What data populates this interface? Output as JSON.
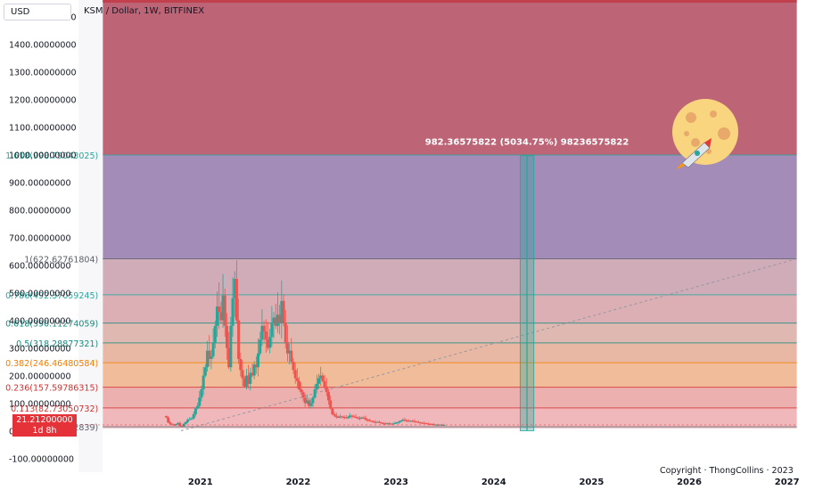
{
  "toolbar": {
    "currency_label": "USD"
  },
  "header": {
    "symbol_title": "KSM / Dollar, 1W, BITFINEX"
  },
  "price_tag": {
    "price": "21.21200000",
    "countdown": "1d 8h"
  },
  "copyright": "Copyright · ThongCollins · 2023",
  "colors": {
    "up": "#26a69a",
    "down": "#ef5350",
    "price_tag": "#e53238",
    "band_top": "#b24a5e",
    "band_1618": "#9a80b0",
    "band_1": "#cba2b0",
    "band_786": "#d7a6ab",
    "band_618": "#dcb0a8",
    "band_5": "#e7b09a",
    "band_382": "#efb58e",
    "band_236": "#eaa7a5",
    "band_113": "#eeb0b4",
    "band_0": "#f4d3d5"
  },
  "chart_data": {
    "type": "candlestick",
    "symbol": "KSM / Dollar",
    "interval": "1W",
    "exchange": "BITFINEX",
    "currency": "USD",
    "y_axis": {
      "range": [
        -150,
        1560
      ],
      "tick_labels": [
        "1500.00000000",
        "1400.00000000",
        "1300.00000000",
        "1200.00000000",
        "1100.00000000",
        "1000.00000000",
        "900.00000000",
        "800.00000000",
        "700.00000000",
        "600.00000000",
        "500.00000000",
        "400.00000000",
        "300.00000000",
        "200.00000000",
        "100.00000000",
        "0.00000000",
        "-100.00000000"
      ],
      "tick_values": [
        1500,
        1400,
        1300,
        1200,
        1100,
        1000,
        900,
        800,
        700,
        600,
        500,
        400,
        300,
        200,
        100,
        0,
        -100
      ]
    },
    "x_axis": {
      "tick_labels": [
        "2021",
        "2022",
        "2023",
        "2024",
        "2025",
        "2026",
        "2027"
      ],
      "tick_values": [
        2021,
        2022,
        2023,
        2024,
        2025,
        2026,
        2027
      ],
      "range": [
        2019.77,
        2027.45
      ]
    },
    "fib_levels": [
      {
        "ratio": 1.618,
        "price": 998.79043025,
        "label": "1.618(998.79043025)",
        "color": "#26a69a"
      },
      {
        "ratio": 1,
        "price": 622.62761804,
        "label": "1(622.62761804)",
        "color": "#5d606b"
      },
      {
        "ratio": 0.786,
        "price": 492.37059245,
        "label": "0.786(492.37059245)",
        "color": "#26a69a"
      },
      {
        "ratio": 0.618,
        "price": 390.11274059,
        "label": "0.618(390.11274059)",
        "color": "#158a7e"
      },
      {
        "ratio": 0.5,
        "price": 318.28877321,
        "label": "0.5(318.28877321)",
        "color": "#158a7e"
      },
      {
        "ratio": 0.382,
        "price": 246.46480584,
        "label": "0.382(246.46480584)",
        "color": "#f57c00"
      },
      {
        "ratio": 0.236,
        "price": 157.59786315,
        "label": "0.236(157.59786315)",
        "color": "#d32f2f"
      },
      {
        "ratio": 0.113,
        "price": 82.73050732,
        "label": "0.113(82.73050732)",
        "color": "#d32f2f"
      },
      {
        "ratio": 0,
        "price": 13.94992839,
        "label": "0(13.94992839)",
        "color": "#5d606b"
      }
    ],
    "fib_range": {
      "x_start": 2020.0,
      "x_end": 2027.1,
      "top_price": 1560
    },
    "trend_line": {
      "x0": 2020.8,
      "y0": 0,
      "x1": 2027.1,
      "y1": 622.6
    },
    "measure": {
      "x0": 2024.27,
      "x1": 2024.41,
      "y0": 0,
      "y1": 996.4,
      "label": "982.36575822 (5034.75%) 98236575822"
    },
    "current_price": 21.212,
    "candles_weekly_close": [
      {
        "t": 2020.65,
        "c": 48
      },
      {
        "t": 2020.67,
        "c": 30
      },
      {
        "t": 2020.69,
        "c": 25
      },
      {
        "t": 2020.71,
        "c": 22
      },
      {
        "t": 2020.73,
        "c": 20
      },
      {
        "t": 2020.75,
        "c": 24
      },
      {
        "t": 2020.77,
        "c": 28
      },
      {
        "t": 2020.79,
        "c": 18
      },
      {
        "t": 2020.81,
        "c": 15
      },
      {
        "t": 2020.83,
        "c": 25
      },
      {
        "t": 2020.85,
        "c": 32
      },
      {
        "t": 2020.87,
        "c": 40
      },
      {
        "t": 2020.89,
        "c": 42
      },
      {
        "t": 2020.91,
        "c": 45
      },
      {
        "t": 2020.93,
        "c": 60
      },
      {
        "t": 2020.95,
        "c": 80
      },
      {
        "t": 2020.97,
        "c": 90
      },
      {
        "t": 2020.99,
        "c": 120
      },
      {
        "t": 2021.01,
        "c": 150
      },
      {
        "t": 2021.03,
        "c": 200
      },
      {
        "t": 2021.05,
        "c": 230
      },
      {
        "t": 2021.07,
        "c": 290
      },
      {
        "t": 2021.09,
        "c": 260
      },
      {
        "t": 2021.11,
        "c": 270
      },
      {
        "t": 2021.13,
        "c": 320
      },
      {
        "t": 2021.15,
        "c": 380
      },
      {
        "t": 2021.17,
        "c": 450
      },
      {
        "t": 2021.19,
        "c": 430
      },
      {
        "t": 2021.21,
        "c": 400
      },
      {
        "t": 2021.23,
        "c": 490
      },
      {
        "t": 2021.25,
        "c": 380
      },
      {
        "t": 2021.27,
        "c": 300
      },
      {
        "t": 2021.29,
        "c": 230
      },
      {
        "t": 2021.31,
        "c": 380
      },
      {
        "t": 2021.33,
        "c": 480
      },
      {
        "t": 2021.35,
        "c": 550
      },
      {
        "t": 2021.37,
        "c": 400
      },
      {
        "t": 2021.39,
        "c": 260
      },
      {
        "t": 2021.41,
        "c": 220
      },
      {
        "t": 2021.43,
        "c": 190
      },
      {
        "t": 2021.45,
        "c": 160
      },
      {
        "t": 2021.47,
        "c": 200
      },
      {
        "t": 2021.49,
        "c": 170
      },
      {
        "t": 2021.51,
        "c": 210
      },
      {
        "t": 2021.53,
        "c": 200
      },
      {
        "t": 2021.55,
        "c": 240
      },
      {
        "t": 2021.57,
        "c": 230
      },
      {
        "t": 2021.59,
        "c": 280
      },
      {
        "t": 2021.61,
        "c": 330
      },
      {
        "t": 2021.63,
        "c": 380
      },
      {
        "t": 2021.65,
        "c": 360
      },
      {
        "t": 2021.67,
        "c": 330
      },
      {
        "t": 2021.69,
        "c": 300
      },
      {
        "t": 2021.71,
        "c": 340
      },
      {
        "t": 2021.73,
        "c": 390
      },
      {
        "t": 2021.75,
        "c": 410
      },
      {
        "t": 2021.77,
        "c": 380
      },
      {
        "t": 2021.79,
        "c": 420
      },
      {
        "t": 2021.81,
        "c": 390
      },
      {
        "t": 2021.83,
        "c": 470
      },
      {
        "t": 2021.85,
        "c": 390
      },
      {
        "t": 2021.87,
        "c": 320
      },
      {
        "t": 2021.89,
        "c": 280
      },
      {
        "t": 2021.91,
        "c": 290
      },
      {
        "t": 2021.93,
        "c": 250
      },
      {
        "t": 2021.95,
        "c": 220
      },
      {
        "t": 2021.97,
        "c": 190
      },
      {
        "t": 2021.99,
        "c": 180
      },
      {
        "t": 2022.01,
        "c": 150
      },
      {
        "t": 2022.03,
        "c": 140
      },
      {
        "t": 2022.05,
        "c": 120
      },
      {
        "t": 2022.07,
        "c": 100
      },
      {
        "t": 2022.09,
        "c": 110
      },
      {
        "t": 2022.11,
        "c": 90
      },
      {
        "t": 2022.13,
        "c": 100
      },
      {
        "t": 2022.15,
        "c": 120
      },
      {
        "t": 2022.17,
        "c": 150
      },
      {
        "t": 2022.19,
        "c": 170
      },
      {
        "t": 2022.21,
        "c": 190
      },
      {
        "t": 2022.23,
        "c": 200
      },
      {
        "t": 2022.25,
        "c": 180
      },
      {
        "t": 2022.27,
        "c": 160
      },
      {
        "t": 2022.29,
        "c": 140
      },
      {
        "t": 2022.31,
        "c": 110
      },
      {
        "t": 2022.33,
        "c": 80
      },
      {
        "t": 2022.35,
        "c": 60
      },
      {
        "t": 2022.37,
        "c": 55
      },
      {
        "t": 2022.39,
        "c": 50
      },
      {
        "t": 2022.41,
        "c": 48
      },
      {
        "t": 2022.43,
        "c": 52
      },
      {
        "t": 2022.45,
        "c": 50
      },
      {
        "t": 2022.47,
        "c": 48
      },
      {
        "t": 2022.49,
        "c": 46
      },
      {
        "t": 2022.51,
        "c": 50
      },
      {
        "t": 2022.53,
        "c": 55
      },
      {
        "t": 2022.55,
        "c": 52
      },
      {
        "t": 2022.57,
        "c": 50
      },
      {
        "t": 2022.59,
        "c": 48
      },
      {
        "t": 2022.61,
        "c": 46
      },
      {
        "t": 2022.63,
        "c": 44
      },
      {
        "t": 2022.65,
        "c": 48
      },
      {
        "t": 2022.67,
        "c": 46
      },
      {
        "t": 2022.69,
        "c": 40
      },
      {
        "t": 2022.71,
        "c": 38
      },
      {
        "t": 2022.73,
        "c": 36
      },
      {
        "t": 2022.75,
        "c": 34
      },
      {
        "t": 2022.77,
        "c": 32
      },
      {
        "t": 2022.79,
        "c": 30
      },
      {
        "t": 2022.81,
        "c": 32
      },
      {
        "t": 2022.83,
        "c": 30
      },
      {
        "t": 2022.85,
        "c": 28
      },
      {
        "t": 2022.87,
        "c": 26
      },
      {
        "t": 2022.89,
        "c": 25
      },
      {
        "t": 2022.91,
        "c": 27
      },
      {
        "t": 2022.93,
        "c": 26
      },
      {
        "t": 2022.95,
        "c": 25
      },
      {
        "t": 2022.97,
        "c": 26
      },
      {
        "t": 2022.99,
        "c": 28
      },
      {
        "t": 2023.01,
        "c": 30
      },
      {
        "t": 2023.03,
        "c": 32
      },
      {
        "t": 2023.05,
        "c": 36
      },
      {
        "t": 2023.07,
        "c": 40
      },
      {
        "t": 2023.09,
        "c": 38
      },
      {
        "t": 2023.11,
        "c": 36
      },
      {
        "t": 2023.13,
        "c": 34
      },
      {
        "t": 2023.15,
        "c": 36
      },
      {
        "t": 2023.17,
        "c": 35
      },
      {
        "t": 2023.19,
        "c": 33
      },
      {
        "t": 2023.21,
        "c": 32
      },
      {
        "t": 2023.23,
        "c": 30
      },
      {
        "t": 2023.25,
        "c": 29
      },
      {
        "t": 2023.27,
        "c": 28
      },
      {
        "t": 2023.29,
        "c": 27
      },
      {
        "t": 2023.31,
        "c": 26
      },
      {
        "t": 2023.33,
        "c": 25
      },
      {
        "t": 2023.35,
        "c": 24
      },
      {
        "t": 2023.37,
        "c": 23
      },
      {
        "t": 2023.39,
        "c": 22
      },
      {
        "t": 2023.41,
        "c": 22
      },
      {
        "t": 2023.43,
        "c": 21
      },
      {
        "t": 2023.45,
        "c": 22
      },
      {
        "t": 2023.47,
        "c": 21
      },
      {
        "t": 2023.49,
        "c": 21
      }
    ]
  }
}
